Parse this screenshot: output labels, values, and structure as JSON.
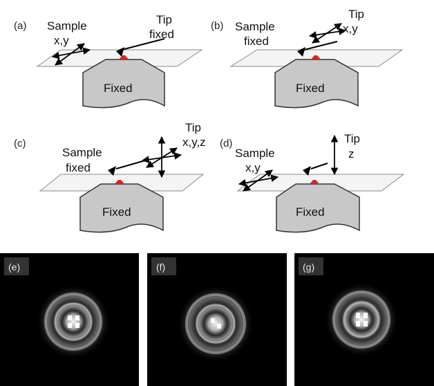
{
  "panels": [
    {
      "letter": "(a)",
      "sample_label": [
        "Sample",
        "x,y"
      ],
      "tip_label": [
        "Tip",
        "fixed"
      ],
      "base_label": "Fixed"
    },
    {
      "letter": "(b)",
      "sample_label": [
        "Sample",
        "fixed"
      ],
      "tip_label": [
        "Tip",
        "x,y"
      ],
      "base_label": "Fixed"
    },
    {
      "letter": "(c)",
      "sample_label": [
        "Sample",
        "fixed"
      ],
      "tip_label": [
        "Tip",
        "x,y,z"
      ],
      "base_label": "Fixed"
    },
    {
      "letter": "(d)",
      "sample_label": [
        "Sample",
        "x,y"
      ],
      "tip_label": [
        "Tip",
        "z"
      ],
      "base_label": "Fixed"
    }
  ],
  "images": [
    {
      "letter": "(e)"
    },
    {
      "letter": "(f)"
    },
    {
      "letter": "(g)"
    }
  ],
  "colors": {
    "tip_dot": "#dd2222",
    "base_fill": "#c8c8c8",
    "image_bg": "#000000"
  }
}
